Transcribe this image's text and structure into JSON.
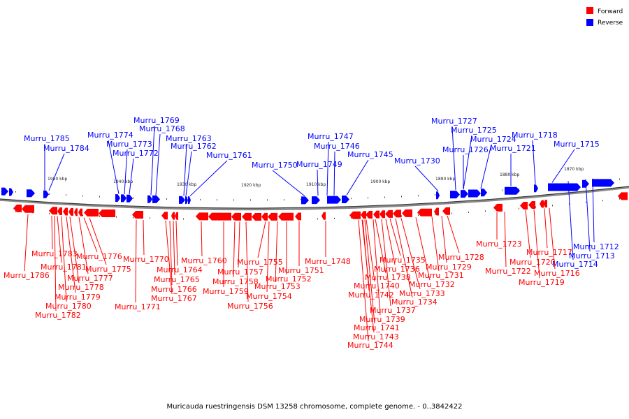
{
  "legend": {
    "forward_label": "Forward",
    "forward_color": "#ff0000",
    "reverse_label": "Reverse",
    "reverse_color": "#0000ff"
  },
  "caption": "Muricauda ruestringensis DSM 13258 chromosome, complete genome. - 0..3842422",
  "scale_ticks": [
    "1950 kbp",
    "1940 kbp",
    "1930 kbp",
    "1920 kbp",
    "1910 kbp",
    "1900 kbp",
    "1890 kbp",
    "1880 kbp",
    "1870 kbp"
  ],
  "reverse_genes": [
    "Murru_1785",
    "Murru_1784",
    "Murru_1774",
    "Murru_1773",
    "Murru_1772",
    "Murru_1769",
    "Murru_1768",
    "Murru_1763",
    "Murru_1762",
    "Murru_1761",
    "Murru_1750",
    "Murru_1749",
    "Murru_1747",
    "Murru_1746",
    "Murru_1745",
    "Murru_1730",
    "Murru_1727",
    "Murru_1725",
    "Murru_1726",
    "Murru_1724",
    "Murru_1721",
    "Murru_1718",
    "Murru_1715",
    "Murru_1712",
    "Murru_1713",
    "Murru_1714"
  ],
  "forward_genes": [
    "Murru_1786",
    "Murru_1783",
    "Murru_1781",
    "Murru_1782",
    "Murru_1780",
    "Murru_1779",
    "Murru_1778",
    "Murru_1777",
    "Murru_1776",
    "Murru_1775",
    "Murru_1771",
    "Murru_1770",
    "Murru_1767",
    "Murru_1766",
    "Murru_1765",
    "Murru_1764",
    "Murru_1760",
    "Murru_1759",
    "Murru_1758",
    "Murru_1757",
    "Murru_1756",
    "Murru_1755",
    "Murru_1754",
    "Murru_1753",
    "Murru_1752",
    "Murru_1751",
    "Murru_1748",
    "Murru_1744",
    "Murru_1743",
    "Murru_1742",
    "Murru_1741",
    "Murru_1740",
    "Murru_1739",
    "Murru_1738",
    "Murru_1737",
    "Murru_1736",
    "Murru_1735",
    "Murru_1734",
    "Murru_1733",
    "Murru_1732",
    "Murru_1731",
    "Murru_1729",
    "Murru_1728",
    "Murru_1723",
    "Murru_1722",
    "Murru_1720",
    "Murru_1719",
    "Murru_1717",
    "Murru_1716"
  ]
}
